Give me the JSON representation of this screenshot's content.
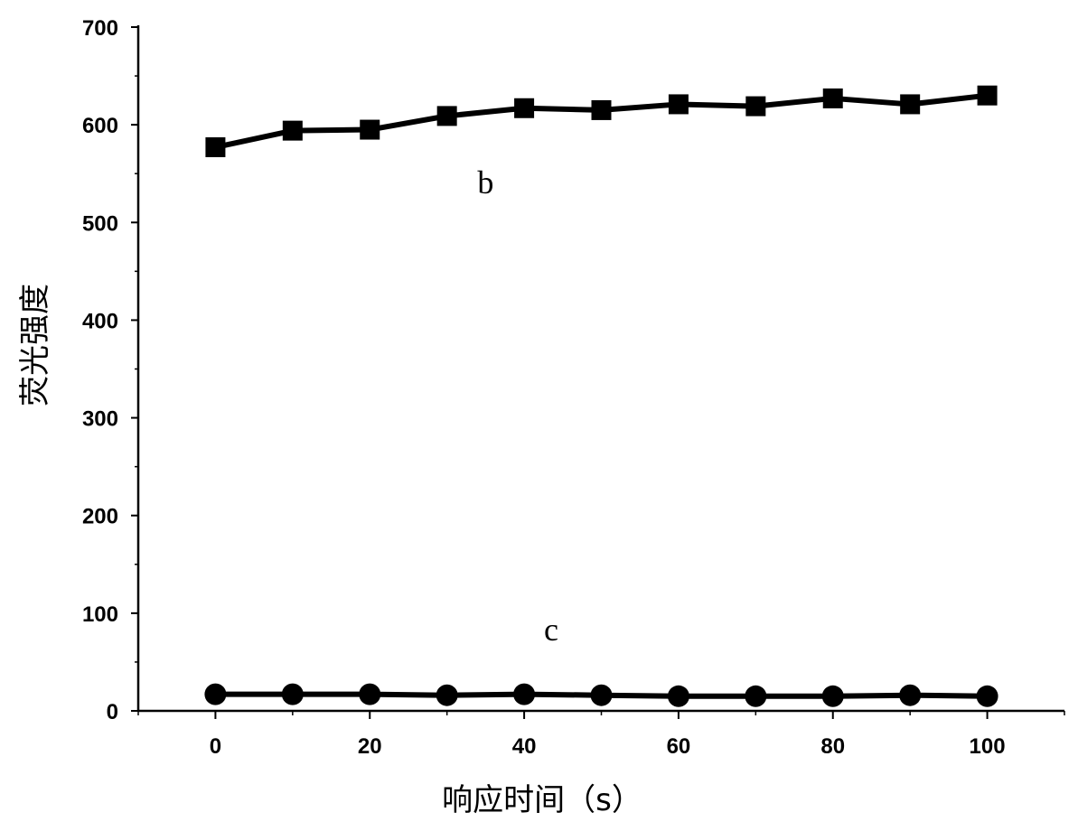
{
  "chart_data": {
    "type": "line",
    "title": "",
    "xlabel": "响应时间（s）",
    "ylabel": "荧光强度",
    "xlim": [
      -10,
      110
    ],
    "ylim": [
      0,
      700
    ],
    "x_ticks": [
      0,
      20,
      40,
      60,
      80,
      100
    ],
    "y_ticks": [
      0,
      100,
      200,
      300,
      400,
      500,
      600,
      700
    ],
    "grid": false,
    "legend": "none",
    "x": [
      0,
      10,
      20,
      30,
      40,
      50,
      60,
      70,
      80,
      90,
      100
    ],
    "series": [
      {
        "name": "b",
        "marker": "square",
        "color": "#000000",
        "values": [
          577,
          594,
          595,
          609,
          617,
          615,
          621,
          619,
          627,
          621,
          630
        ]
      },
      {
        "name": "c",
        "marker": "circle",
        "color": "#000000",
        "values": [
          17,
          17,
          17,
          16,
          17,
          16,
          15,
          15,
          15,
          16,
          15
        ]
      }
    ]
  }
}
